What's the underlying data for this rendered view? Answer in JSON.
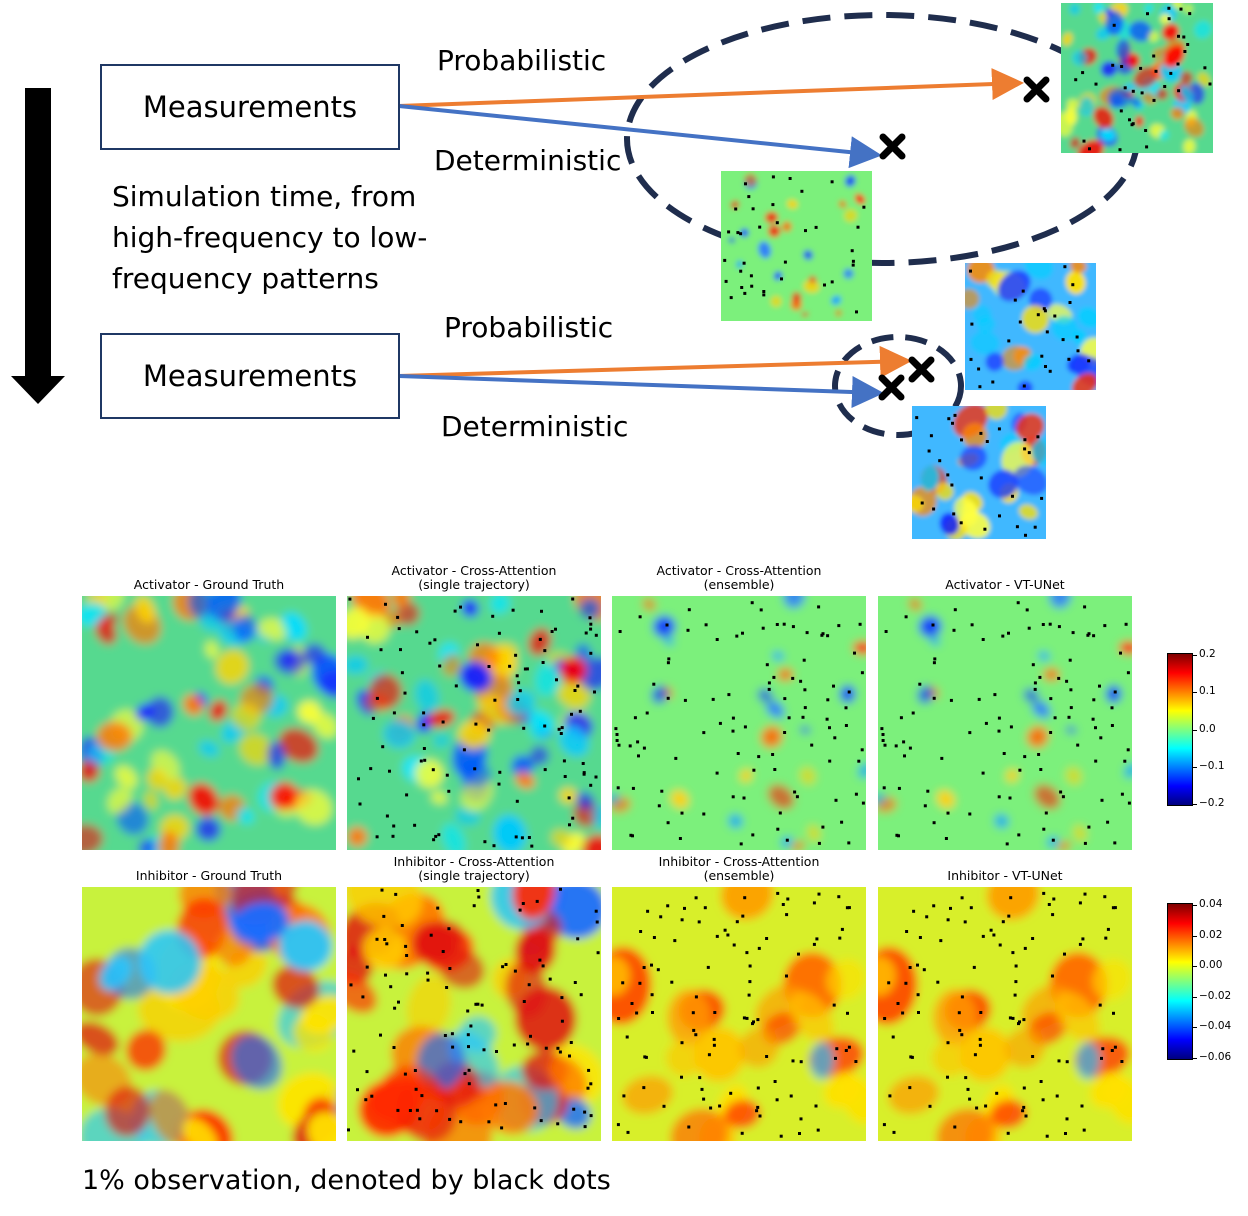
{
  "diagram": {
    "measurement_box_top": "Measurements",
    "measurement_box_bottom": "Measurements",
    "label_probabilistic_top": "Probabilistic",
    "label_deterministic_top": "Deterministic",
    "label_probabilistic_bottom": "Probabilistic",
    "label_deterministic_bottom": "Deterministic",
    "simulation_text_lines": [
      "Simulation time, from",
      "high-frequency to low-",
      "frequency patterns"
    ],
    "colors": {
      "probabilistic_arrow": "#ed7d31",
      "deterministic_arrow": "#4472c4",
      "ellipse": "#1f2d4d",
      "box_border": "#1f3864"
    }
  },
  "figure": {
    "activator_titles": [
      [
        "Activator - Ground Truth"
      ],
      [
        "Activator - Cross-Attention",
        "(single trajectory)"
      ],
      [
        "Activator - Cross-Attention",
        "(ensemble)"
      ],
      [
        "Activator - VT-UNet"
      ]
    ],
    "inhibitor_titles": [
      [
        "Inhibitor - Ground Truth"
      ],
      [
        "Inhibitor - Cross-Attention",
        "(single trajectory)"
      ],
      [
        "Inhibitor - Cross-Attention",
        "(ensemble)"
      ],
      [
        "Inhibitor - VT-UNet"
      ]
    ],
    "activator_colorbar_ticks": [
      "0.2",
      "0.1",
      "0.0",
      "−0.1",
      "−0.2"
    ],
    "inhibitor_colorbar_ticks": [
      "0.04",
      "0.02",
      "0.00",
      "−0.02",
      "−0.04",
      "−0.06"
    ],
    "colormap": [
      "#00007f",
      "#0000ff",
      "#007fff",
      "#00ffff",
      "#7fff7f",
      "#ffff00",
      "#ff7f00",
      "#ff0000",
      "#7f0000"
    ]
  },
  "caption": "1% observation, denoted by black dots"
}
